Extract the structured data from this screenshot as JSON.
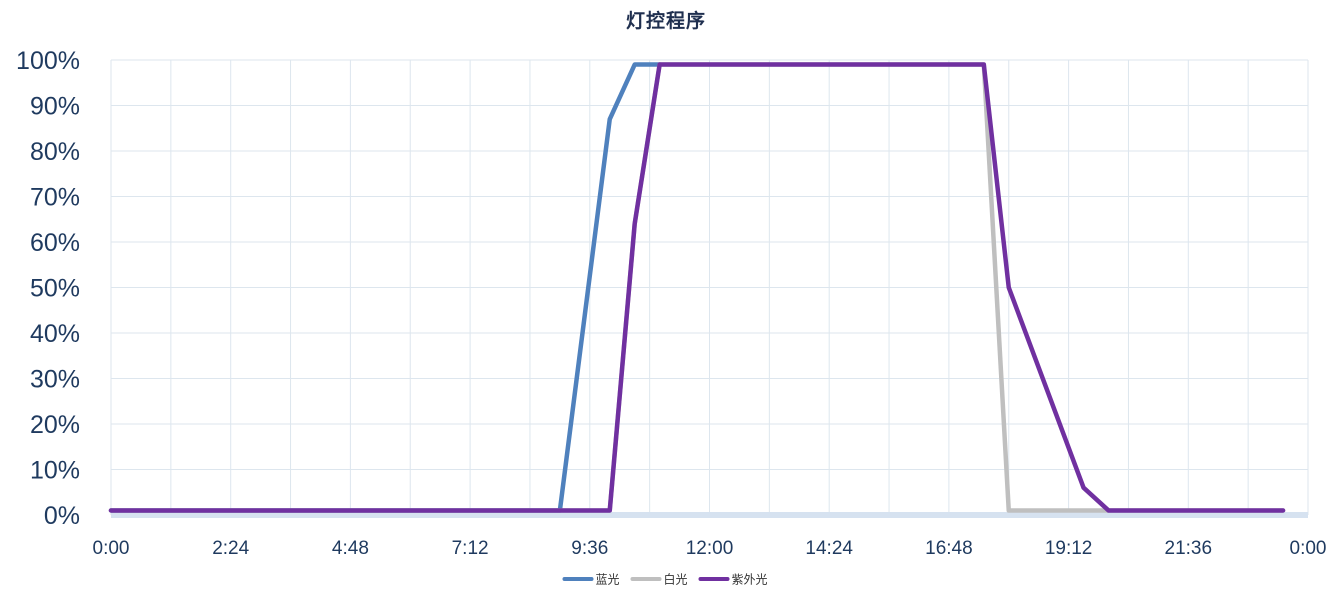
{
  "chart_data": {
    "type": "line",
    "title": "灯控程序",
    "xlabel": "",
    "ylabel": "",
    "x_unit": "hours",
    "xlim": [
      0,
      24
    ],
    "ylim": [
      0,
      100
    ],
    "x_tick_values": [
      0,
      2.4,
      4.8,
      7.2,
      9.6,
      12.0,
      14.4,
      16.8,
      19.2,
      21.6,
      24.0
    ],
    "x_tick_labels": [
      "0:00",
      "2:24",
      "4:48",
      "7:12",
      "9:36",
      "12:00",
      "14:24",
      "16:48",
      "19:12",
      "21:36",
      "0:00"
    ],
    "y_tick_values": [
      0,
      10,
      20,
      30,
      40,
      50,
      60,
      70,
      80,
      90,
      100
    ],
    "y_tick_labels": [
      "0%",
      "10%",
      "20%",
      "30%",
      "40%",
      "50%",
      "60%",
      "70%",
      "80%",
      "90%",
      "100%"
    ],
    "grid": true,
    "legend_position": "bottom-center",
    "series": [
      {
        "name": "蓝光",
        "color": "#4f81bd",
        "x": [
          0,
          9.0,
          10.0,
          10.5,
          11.0
        ],
        "y": [
          1,
          1,
          87,
          99,
          99
        ]
      },
      {
        "name": "白光",
        "color": "#bfbfbf",
        "x": [
          0,
          10.0,
          10.5,
          11.0,
          17.5,
          18.0,
          20.0,
          23.5
        ],
        "y": [
          1,
          1,
          64,
          99,
          99,
          1,
          1,
          1
        ]
      },
      {
        "name": "紫外光",
        "color": "#7030a0",
        "x": [
          0,
          10.0,
          10.5,
          11.0,
          17.5,
          18.0,
          19.5,
          20.0,
          23.5
        ],
        "y": [
          1,
          1,
          64,
          99,
          99,
          50,
          6,
          1,
          1
        ]
      }
    ]
  }
}
